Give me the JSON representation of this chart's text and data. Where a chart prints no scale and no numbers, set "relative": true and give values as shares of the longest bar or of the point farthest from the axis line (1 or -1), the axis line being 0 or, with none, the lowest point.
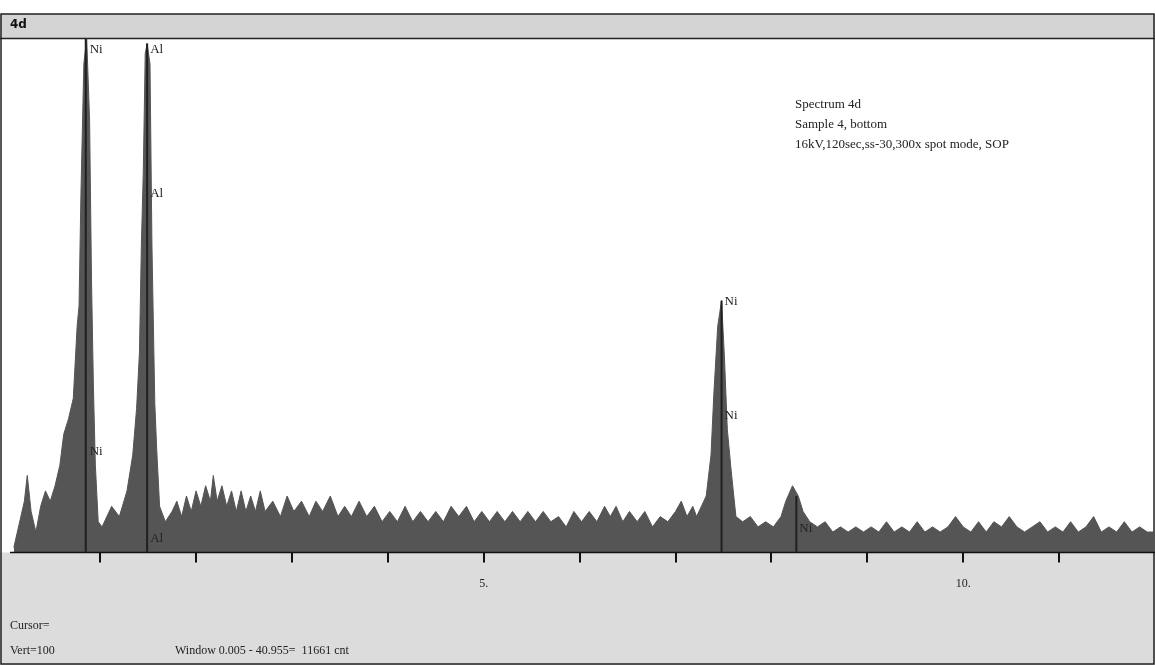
{
  "chart_data": {
    "type": "area",
    "title": "4d",
    "relative": true,
    "color": "#555555",
    "xlim": [
      0.06,
      12.0
    ],
    "xticks": [
      {
        "value": 1,
        "label": null
      },
      {
        "value": 2,
        "label": null
      },
      {
        "value": 3,
        "label": null
      },
      {
        "value": 4,
        "label": null
      },
      {
        "value": 5,
        "label": "5."
      },
      {
        "value": 6,
        "label": null
      },
      {
        "value": 7,
        "label": null
      },
      {
        "value": 8,
        "label": null
      },
      {
        "value": 9,
        "label": null
      },
      {
        "value": 10,
        "label": "10."
      },
      {
        "value": 11,
        "label": null
      }
    ],
    "x": [
      0.1,
      0.21,
      0.24,
      0.28,
      0.33,
      0.38,
      0.43,
      0.48,
      0.53,
      0.58,
      0.62,
      0.67,
      0.72,
      0.76,
      0.78,
      0.8,
      0.83,
      0.86,
      0.89,
      0.91,
      0.93,
      0.95,
      0.98,
      1.02,
      1.12,
      1.2,
      1.28,
      1.34,
      1.38,
      1.41,
      1.43,
      1.45,
      1.47,
      1.49,
      1.52,
      1.54,
      1.57,
      1.59,
      1.62,
      1.68,
      1.75,
      1.8,
      1.85,
      1.9,
      1.95,
      2.0,
      2.05,
      2.1,
      2.15,
      2.18,
      2.22,
      2.27,
      2.32,
      2.37,
      2.42,
      2.47,
      2.52,
      2.57,
      2.62,
      2.67,
      2.72,
      2.8,
      2.88,
      2.95,
      3.02,
      3.1,
      3.18,
      3.25,
      3.32,
      3.4,
      3.48,
      3.55,
      3.62,
      3.7,
      3.78,
      3.86,
      3.94,
      4.02,
      4.1,
      4.18,
      4.26,
      4.34,
      4.42,
      4.5,
      4.58,
      4.66,
      4.74,
      4.82,
      4.9,
      4.98,
      5.06,
      5.14,
      5.22,
      5.3,
      5.38,
      5.46,
      5.54,
      5.62,
      5.7,
      5.78,
      5.86,
      5.94,
      6.02,
      6.1,
      6.18,
      6.26,
      6.32,
      6.38,
      6.45,
      6.52,
      6.6,
      6.68,
      6.76,
      6.84,
      6.92,
      7.0,
      7.06,
      7.12,
      7.18,
      7.22,
      7.27,
      7.32,
      7.37,
      7.4,
      7.44,
      7.48,
      7.51,
      7.54,
      7.58,
      7.63,
      7.7,
      7.78,
      7.86,
      7.94,
      8.02,
      8.1,
      8.15,
      8.22,
      8.28,
      8.33,
      8.4,
      8.48,
      8.56,
      8.64,
      8.72,
      8.8,
      8.88,
      8.96,
      9.04,
      9.12,
      9.2,
      9.28,
      9.36,
      9.44,
      9.52,
      9.6,
      9.68,
      9.76,
      9.84,
      9.92,
      10.0,
      10.08,
      10.16,
      10.24,
      10.32,
      10.4,
      10.48,
      10.56,
      10.64,
      10.72,
      10.8,
      10.88,
      10.96,
      11.04,
      11.12,
      11.2,
      11.28,
      11.36,
      11.44,
      11.52,
      11.6,
      11.68,
      11.76,
      11.84,
      11.92,
      12.0
    ],
    "values": [
      0.01,
      0.1,
      0.15,
      0.08,
      0.04,
      0.09,
      0.12,
      0.1,
      0.13,
      0.17,
      0.23,
      0.26,
      0.3,
      0.44,
      0.48,
      0.7,
      0.95,
      1,
      0.84,
      0.53,
      0.32,
      0.17,
      0.06,
      0.05,
      0.09,
      0.07,
      0.12,
      0.19,
      0.28,
      0.39,
      0.6,
      0.74,
      0.97,
      0.99,
      0.95,
      0.6,
      0.29,
      0.2,
      0.09,
      0.06,
      0.08,
      0.1,
      0.07,
      0.11,
      0.08,
      0.12,
      0.09,
      0.13,
      0.1,
      0.15,
      0.1,
      0.13,
      0.09,
      0.12,
      0.08,
      0.12,
      0.08,
      0.11,
      0.08,
      0.12,
      0.08,
      0.1,
      0.07,
      0.11,
      0.08,
      0.1,
      0.07,
      0.1,
      0.08,
      0.11,
      0.07,
      0.09,
      0.07,
      0.1,
      0.07,
      0.09,
      0.06,
      0.08,
      0.06,
      0.09,
      0.06,
      0.08,
      0.06,
      0.08,
      0.06,
      0.09,
      0.07,
      0.09,
      0.06,
      0.08,
      0.06,
      0.08,
      0.06,
      0.08,
      0.06,
      0.08,
      0.06,
      0.08,
      0.06,
      0.07,
      0.05,
      0.08,
      0.06,
      0.08,
      0.06,
      0.09,
      0.07,
      0.09,
      0.06,
      0.08,
      0.06,
      0.08,
      0.05,
      0.07,
      0.06,
      0.08,
      0.1,
      0.07,
      0.09,
      0.07,
      0.09,
      0.11,
      0.19,
      0.31,
      0.44,
      0.49,
      0.38,
      0.24,
      0.16,
      0.07,
      0.06,
      0.07,
      0.05,
      0.06,
      0.05,
      0.07,
      0.1,
      0.13,
      0.11,
      0.08,
      0.06,
      0.05,
      0.06,
      0.04,
      0.05,
      0.04,
      0.05,
      0.04,
      0.05,
      0.04,
      0.06,
      0.04,
      0.05,
      0.04,
      0.06,
      0.04,
      0.05,
      0.04,
      0.05,
      0.07,
      0.05,
      0.04,
      0.06,
      0.04,
      0.06,
      0.05,
      0.07,
      0.05,
      0.04,
      0.05,
      0.06,
      0.04,
      0.05,
      0.04,
      0.06,
      0.04,
      0.05,
      0.07,
      0.04,
      0.05,
      0.04,
      0.06,
      0.04,
      0.05,
      0.04,
      0.04
    ],
    "ref_lines": [
      {
        "axis": "x",
        "value": 0.85,
        "color": "#202020"
      },
      {
        "axis": "x",
        "value": 1.49,
        "color": "#202020"
      },
      {
        "axis": "x",
        "value": 7.48,
        "color": "#202020"
      },
      {
        "axis": "x",
        "value": 8.26,
        "color": "#202020"
      }
    ],
    "annotations": [
      {
        "text": "Ni",
        "x": 0.86,
        "y": 0.99
      },
      {
        "text": "Al",
        "x": 1.49,
        "y": 0.99
      },
      {
        "text": "Al",
        "x": 1.49,
        "y": 0.71
      },
      {
        "text": "Ni",
        "x": 0.86,
        "y": 0.21
      },
      {
        "text": "Al",
        "x": 1.49,
        "y": 0.04
      },
      {
        "text": "Ni",
        "x": 7.48,
        "y": 0.5
      },
      {
        "text": "Ni",
        "x": 7.48,
        "y": 0.28
      },
      {
        "text": "Ni",
        "x": 8.26,
        "y": 0.06
      },
      "Spectrum 4d",
      "Sample 4, bottom",
      "16kV,120sec,ss-30,300x spot mode, SOP",
      "Cursor=",
      "Vert=100",
      "Window 0.005 - 40.955=  11661 cnt"
    ]
  }
}
